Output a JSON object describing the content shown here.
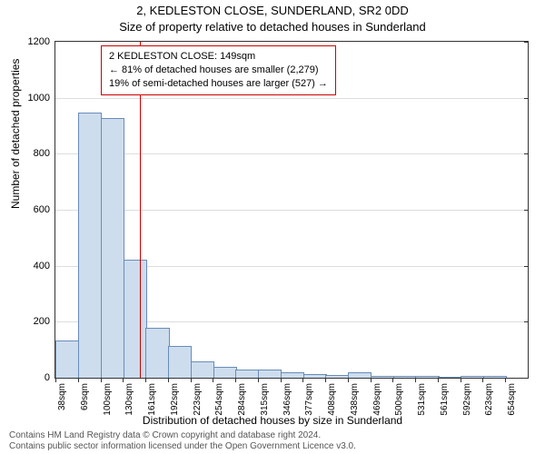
{
  "title_main": "2, KEDLESTON CLOSE, SUNDERLAND, SR2 0DD",
  "title_sub": "Size of property relative to detached houses in Sunderland",
  "ylabel": "Number of detached properties",
  "xlabel": "Distribution of detached houses by size in Sunderland",
  "footnote_line1": "Contains HM Land Registry data © Crown copyright and database right 2024.",
  "footnote_line2": "Contains public sector information licensed under the Open Government Licence v3.0.",
  "chart": {
    "type": "histogram",
    "ylim": [
      0,
      1200
    ],
    "ytick_step": 200,
    "bar_fill": "#cdddee",
    "bar_stroke": "#6a8cb8",
    "background_color": "#ffffff",
    "grid_color": "#dddddd",
    "marker_color": "#cc0000",
    "marker_x_value": 149,
    "x_start": 38,
    "x_step": 31,
    "categories": [
      "38sqm",
      "69sqm",
      "100sqm",
      "130sqm",
      "161sqm",
      "192sqm",
      "223sqm",
      "254sqm",
      "284sqm",
      "315sqm",
      "346sqm",
      "377sqm",
      "408sqm",
      "438sqm",
      "469sqm",
      "500sqm",
      "531sqm",
      "561sqm",
      "592sqm",
      "623sqm",
      "654sqm"
    ],
    "values": [
      130,
      945,
      925,
      420,
      175,
      110,
      55,
      35,
      25,
      25,
      15,
      10,
      5,
      15,
      3,
      4,
      3,
      0,
      2,
      2
    ],
    "annotation": {
      "lines": [
        "2 KEDLESTON CLOSE: 149sqm",
        "← 81% of detached houses are smaller (2,279)",
        "19% of semi-detached houses are larger (527) →"
      ],
      "border_color": "#cc0000",
      "bg_color": "#ffffff",
      "fontsize": 11
    }
  }
}
